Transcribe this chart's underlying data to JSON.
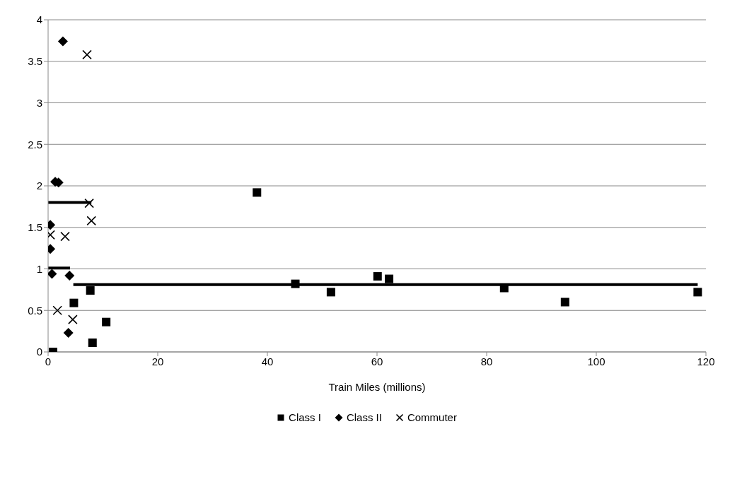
{
  "chart_data": {
    "type": "scatter",
    "xlabel": "Train Miles (millions)",
    "xlim": [
      0,
      120
    ],
    "xticks": [
      0,
      20,
      40,
      60,
      80,
      100,
      120
    ],
    "ylim": [
      0,
      4
    ],
    "yticks": [
      0,
      0.5,
      1,
      1.5,
      2,
      2.5,
      3,
      3.5,
      4
    ],
    "grid": "y",
    "legend": "bottom",
    "series": [
      {
        "name": "Class I",
        "color": "#000000",
        "marker": "square",
        "x": [
          38.1,
          45.1,
          51.6,
          60.1,
          62.2,
          83.2,
          94.3,
          118.5,
          7.7,
          4.7,
          10.6,
          8.1,
          0.9
        ],
        "values": [
          1.92,
          0.82,
          0.72,
          0.91,
          0.88,
          0.77,
          0.6,
          0.72,
          0.74,
          0.59,
          0.36,
          0.11,
          0
        ]
      },
      {
        "name": "Class II",
        "color": "#000000",
        "marker": "diamond",
        "x": [
          2.7,
          1.3,
          1.9,
          0.4,
          0.4,
          0.7,
          3.9,
          3.7
        ],
        "values": [
          3.74,
          2.05,
          2.04,
          1.53,
          1.24,
          0.94,
          0.92,
          0.23
        ]
      },
      {
        "name": "Commuter",
        "color": "#000000",
        "marker": "cross",
        "x": [
          7.1,
          7.5,
          7.9,
          3.1,
          0.4,
          1.7,
          4.5
        ],
        "values": [
          3.58,
          1.79,
          1.58,
          1.39,
          1.41,
          0.5,
          0.39
        ]
      },
      {
        "type": "line",
        "color": "#000000",
        "marker": "none",
        "x": [
          4.6,
          118.5
        ],
        "values": [
          0.81,
          0.81
        ]
      },
      {
        "type": "line",
        "color": "#000000",
        "marker": "none",
        "x": [
          0,
          4
        ],
        "values": [
          1.01,
          1.01
        ]
      },
      {
        "type": "line",
        "color": "#000000",
        "marker": "none",
        "x": [
          0,
          7.9
        ],
        "values": [
          1.8,
          1.8
        ]
      }
    ]
  }
}
